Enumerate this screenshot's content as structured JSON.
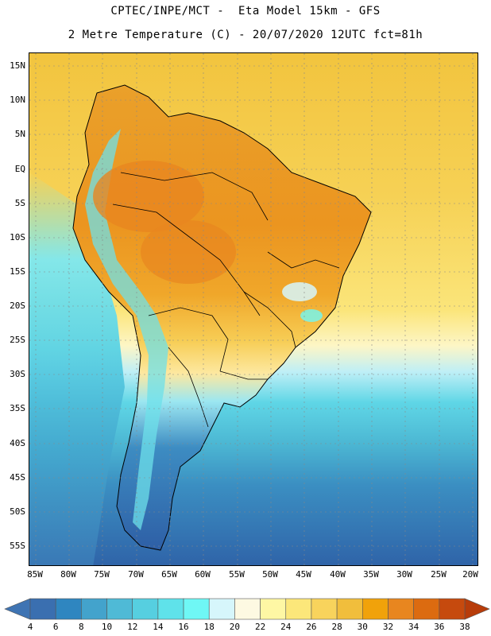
{
  "title": {
    "line1": "CPTEC/INPE/MCT -  Eta Model 15km - GFS",
    "line2": "2 Metre Temperature (C) - 20/07/2020 12UTC fct=81h"
  },
  "map": {
    "latitude_labels": [
      "15N",
      "10N",
      "5N",
      "EQ",
      "5S",
      "10S",
      "15S",
      "20S",
      "25S",
      "30S",
      "35S",
      "40S",
      "45S",
      "50S",
      "55S"
    ],
    "longitude_labels": [
      "85W",
      "80W",
      "75W",
      "70W",
      "65W",
      "60W",
      "55W",
      "50W",
      "45W",
      "40W",
      "35W",
      "30W",
      "25W",
      "20W"
    ]
  },
  "colorbar": {
    "labels": [
      "4",
      "6",
      "8",
      "10",
      "12",
      "14",
      "16",
      "18",
      "20",
      "22",
      "24",
      "26",
      "28",
      "30",
      "32",
      "34",
      "36",
      "38"
    ],
    "colors": [
      "#3a6fb0",
      "#2f86c0",
      "#43a3cc",
      "#4fbad6",
      "#56cfe0",
      "#5fe2ea",
      "#6ff7f5",
      "#d6f6fb",
      "#fdf9e2",
      "#fef7a4",
      "#fce77a",
      "#f8d35c",
      "#f1be3c",
      "#f1a20a",
      "#e8861f",
      "#dc6b10",
      "#c64a0e"
    ],
    "low_extend_color": "#3f74b3",
    "high_extend_color": "#b73c0a"
  }
}
